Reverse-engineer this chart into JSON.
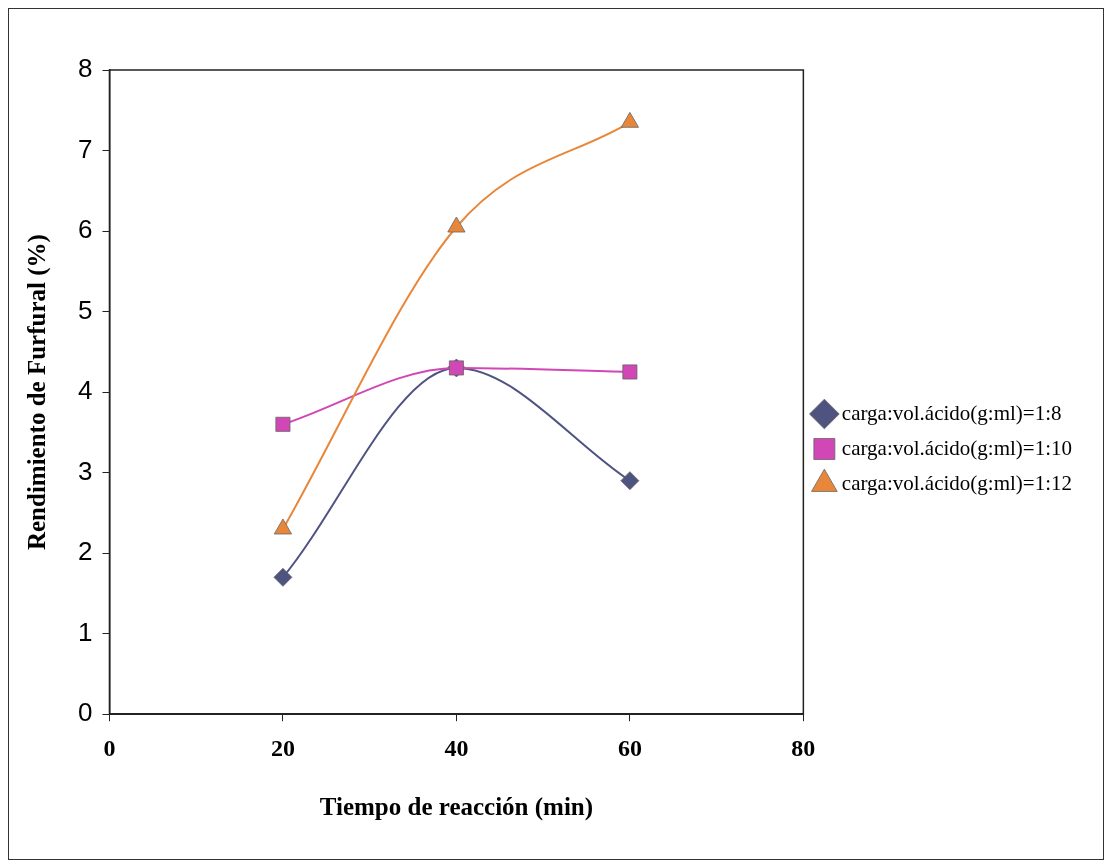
{
  "chart_data": {
    "type": "line",
    "xlabel": "Tiempo de reacción (min)",
    "ylabel": "Rendimiento de Furfural (%)",
    "x": [
      20,
      40,
      60
    ],
    "series": [
      {
        "name": "carga:vol.ácido(g:ml)=1:8",
        "color": "#4f5380",
        "marker": "diamond",
        "values": [
          1.7,
          4.3,
          2.9
        ]
      },
      {
        "name": "carga:vol.ácido(g:ml)=1:10",
        "color": "#d147b5",
        "marker": "square",
        "values": [
          3.6,
          4.3,
          4.25
        ]
      },
      {
        "name": "carga:vol.ácido(g:ml)=1:12",
        "color": "#e8873a",
        "marker": "triangle",
        "values": [
          2.3,
          6.05,
          7.35
        ]
      }
    ],
    "xlim": [
      0,
      80
    ],
    "xticks": [
      0,
      20,
      40,
      60,
      80
    ],
    "ylim": [
      0,
      8
    ],
    "yticks": [
      0,
      1,
      2,
      3,
      4,
      5,
      6,
      7,
      8
    ],
    "grid": false,
    "legend": "right",
    "line_style": "solid"
  }
}
